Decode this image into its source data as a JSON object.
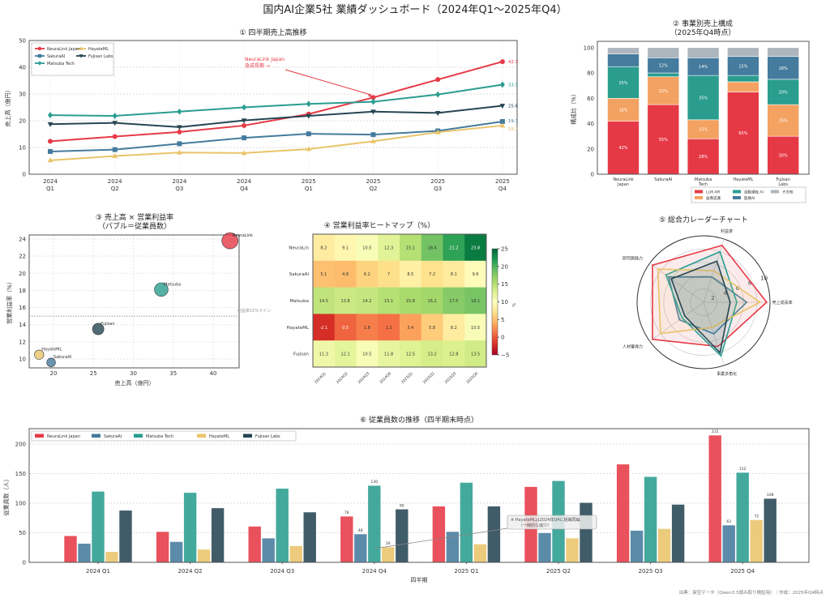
{
  "title": "国内AI企業5社 業績ダッシュボード（2024年Q1～2025年Q4）",
  "footer": "出典：架空データ（Qwen3.5読み取り検証用）｜作成：2025年Q4時点",
  "chart_data": [
    {
      "type": "line",
      "title": "① 四半期売上高推移",
      "ylabel": "売上高（億円）",
      "ylim": [
        0,
        50
      ],
      "yticks": [
        "0",
        "10",
        "20",
        "30",
        "40",
        "50"
      ],
      "grid": true,
      "legend_placement": "top-left",
      "categories": [
        {
          "year": "2024",
          "q": "Q1"
        },
        {
          "year": "2024",
          "q": "Q2"
        },
        {
          "year": "2024",
          "q": "Q3"
        },
        {
          "year": "2024",
          "q": "Q4"
        },
        {
          "year": "2025",
          "q": "Q1"
        },
        {
          "year": "2025",
          "q": "Q2"
        },
        {
          "year": "2025",
          "q": "Q3"
        },
        {
          "year": "2025",
          "q": "Q4"
        }
      ],
      "series": [
        {
          "name": "NeuraLink Japan",
          "color": "#e63946",
          "marker": "circle",
          "values": [
            12.3,
            14.1,
            15.8,
            18.2,
            22.5,
            28.7,
            35.4,
            42.1
          ]
        },
        {
          "name": "SakuraAI",
          "color": "#457b9d",
          "marker": "square",
          "values": [
            8.5,
            9.2,
            11.4,
            13.6,
            15.1,
            14.8,
            16.2,
            19.7
          ]
        },
        {
          "name": "Matsuba Tech",
          "color": "#2a9d8f",
          "marker": "diamond",
          "values": [
            22.1,
            21.8,
            23.4,
            25.0,
            26.3,
            27.1,
            29.8,
            33.5
          ]
        },
        {
          "name": "HayateML",
          "color": "#e9c46a",
          "marker": "triangle-up",
          "values": [
            5.2,
            6.8,
            8.1,
            7.9,
            9.4,
            12.3,
            15.7,
            18.2
          ]
        },
        {
          "name": "Fujisan Labs",
          "color": "#264653",
          "marker": "triangle-down",
          "values": [
            18.7,
            19.2,
            17.6,
            20.1,
            21.8,
            23.4,
            22.9,
            25.6
          ]
        }
      ],
      "annotation": {
        "lines": [
          "NeuraLink Japan",
          "急成長期 →"
        ],
        "series_index": 0,
        "point_index": 5
      }
    },
    {
      "type": "bar",
      "stacked": true,
      "title": [
        "② 事業別売上構成",
        "（2025年Q4時点）"
      ],
      "ylabel": "構成比（%）",
      "ylim": [
        0,
        105
      ],
      "yticks": [
        "0",
        "20",
        "40",
        "60",
        "80",
        "100"
      ],
      "legend_placement": "bottom-right",
      "categories": [
        [
          "NeuraLink",
          "Japan"
        ],
        [
          "SakuraAI"
        ],
        [
          "Matsuba",
          "Tech"
        ],
        [
          "HayateML"
        ],
        [
          "Fujisan",
          "Labs"
        ]
      ],
      "series": [
        {
          "name": "LLM API",
          "color": "#e63946",
          "values": [
            42,
            55,
            28,
            65,
            30
          ],
          "labels": [
            "42%",
            "55%",
            "28%",
            "65%",
            "30%"
          ]
        },
        {
          "name": "画像認識",
          "color": "#f4a261",
          "values": [
            18,
            22,
            15,
            8,
            25
          ],
          "labels": [
            "18%",
            "22%",
            "15%",
            null,
            "25%"
          ]
        },
        {
          "name": "自動運転 AI",
          "color": "#2a9d8f",
          "values": [
            25,
            3,
            35,
            5,
            20
          ],
          "labels": [
            "25%",
            null,
            "35%",
            null,
            "20%"
          ]
        },
        {
          "name": "医療AI",
          "color": "#457b9d",
          "values": [
            10,
            12,
            14,
            15,
            18
          ],
          "labels": [
            null,
            "12%",
            "14%",
            "15%",
            "18%"
          ]
        },
        {
          "name": "その他",
          "color": "#adb5bd",
          "values": [
            5,
            8,
            8,
            7,
            7
          ],
          "labels": [
            null,
            null,
            null,
            null,
            null
          ]
        }
      ]
    },
    {
      "type": "scatter",
      "title": [
        "③ 売上高 × 営業利益率",
        "（バブル＝従業員数）"
      ],
      "xlabel": "売上高（億円）",
      "ylabel": "営業利益率（%）",
      "xlim": [
        17,
        43.2
      ],
      "ylim": [
        9,
        24.5
      ],
      "xticks": [
        "20",
        "25",
        "30",
        "35",
        "40"
      ],
      "yticks": [
        "10",
        "12",
        "14",
        "16",
        "18",
        "20",
        "22",
        "24"
      ],
      "points": [
        {
          "label": "NeuraLink",
          "x": 42.1,
          "y": 23.8,
          "size": 215,
          "color": "#e63946"
        },
        {
          "label": "Matsuba",
          "x": 33.5,
          "y": 18.1,
          "size": 152,
          "color": "#2a9d8f"
        },
        {
          "label": "Fujisan",
          "x": 25.6,
          "y": 13.5,
          "size": 108,
          "color": "#264653"
        },
        {
          "label": "HayateML",
          "x": 18.2,
          "y": 10.5,
          "size": 72,
          "color": "#e9c46a"
        },
        {
          "label": "SakuraAI",
          "x": 19.7,
          "y": 9.6,
          "size": 63,
          "color": "#457b9d"
        }
      ],
      "hline": {
        "y": 15,
        "label": "利益率15%ライン"
      }
    },
    {
      "type": "heatmap",
      "title": "④ 営業利益率ヒートマップ（%）",
      "rows": [
        "NeuraLin",
        "SakuraAI",
        "Matsuba",
        "HayateML",
        "Fujisan"
      ],
      "cols": [
        "2024Q1",
        "2024Q2",
        "2024Q3",
        "2024Q4",
        "2025Q1",
        "2025Q2",
        "2025Q3",
        "2025Q4"
      ],
      "values": [
        [
          8.2,
          9.1,
          10.5,
          12.3,
          15.1,
          18.4,
          21.2,
          23.8
        ],
        [
          5.1,
          4.8,
          6.2,
          7.0,
          8.5,
          7.2,
          8.1,
          9.6
        ],
        [
          14.5,
          13.8,
          14.2,
          15.1,
          15.8,
          16.2,
          17.5,
          18.1
        ],
        [
          -2.1,
          0.5,
          1.8,
          1.2,
          3.4,
          5.8,
          8.2,
          10.5
        ],
        [
          11.3,
          12.1,
          10.5,
          11.8,
          12.5,
          13.2,
          12.8,
          13.5
        ]
      ],
      "colormap": "RdYlGn",
      "vmin": -5,
      "vmax": 25,
      "colorbar_ticks": [
        "−5",
        "0",
        "5",
        "10",
        "15",
        "20",
        "25"
      ],
      "colorbar_label": "%"
    },
    {
      "type": "radar",
      "title": "⑤ 総合力レーダーチャート",
      "axes": [
        "売上成長率",
        "利益率",
        "研究開発力",
        "人材獲得力",
        "事業多角化"
      ],
      "rlim": [
        0,
        10
      ],
      "rticks": [
        "2",
        "4",
        "6",
        "8",
        "10"
      ],
      "series": [
        {
          "name": "NeuraLink Japan",
          "color": "#e63946",
          "values": [
            9.5,
            9.0,
            9.5,
            9.5,
            7.0
          ]
        },
        {
          "name": "SakuraAI",
          "color": "#457b9d",
          "values": [
            6.5,
            4.0,
            6.5,
            4.5,
            5.0
          ]
        },
        {
          "name": "Matsuba Tech",
          "color": "#2a9d8f",
          "values": [
            5.0,
            8.0,
            7.0,
            4.0,
            8.5
          ]
        },
        {
          "name": "HayateML",
          "color": "#e9c46a",
          "values": [
            8.5,
            5.0,
            8.5,
            8.0,
            4.0
          ]
        },
        {
          "name": "Fujisan Labs",
          "color": "#264653",
          "values": [
            4.0,
            6.5,
            6.0,
            3.5,
            8.0
          ]
        }
      ]
    },
    {
      "type": "bar",
      "title": "⑥ 従業員数の推移（四半期末時点）",
      "xlabel": "四半期",
      "ylabel": "従業員数（人）",
      "ylim": [
        0,
        226
      ],
      "yticks": [
        "0",
        "50",
        "100",
        "150",
        "200"
      ],
      "legend_placement": "top-left",
      "categories": [
        "2024 Q1",
        "2024 Q2",
        "2024 Q3",
        "2024 Q4",
        "2025 Q1",
        "2025 Q2",
        "2025 Q3",
        "2025 Q4"
      ],
      "series": [
        {
          "name": "NeuraLink Japan",
          "color": "#e63946",
          "values": [
            45,
            52,
            61,
            78,
            95,
            128,
            166,
            215
          ]
        },
        {
          "name": "SakuraAI",
          "color": "#457b9d",
          "values": [
            32,
            35,
            41,
            48,
            52,
            50,
            54,
            63
          ]
        },
        {
          "name": "Matsuba Tech",
          "color": "#2a9d8f",
          "values": [
            120,
            118,
            125,
            130,
            135,
            138,
            145,
            152
          ]
        },
        {
          "name": "HayateML",
          "color": "#e9c46a",
          "values": [
            18,
            22,
            28,
            26,
            31,
            41,
            57,
            72
          ]
        },
        {
          "name": "Fujisan Labs",
          "color": "#264653",
          "values": [
            88,
            92,
            85,
            90,
            95,
            101,
            98,
            108
          ]
        }
      ],
      "value_labels_at": [
        3,
        7
      ],
      "annotation": {
        "lines": [
          "※ HayateMLは2024年Q4に組織再編",
          "（一時的な減少）"
        ],
        "series_index": 3,
        "point_index": 3
      }
    }
  ]
}
